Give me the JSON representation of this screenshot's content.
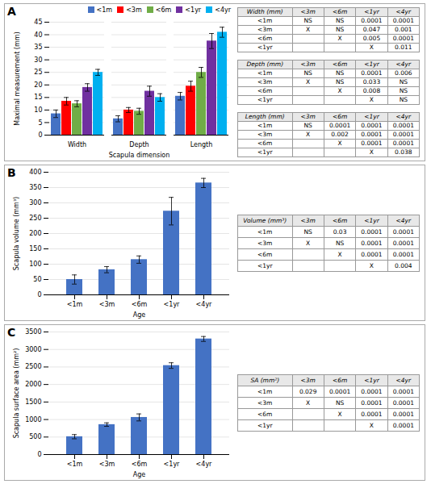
{
  "chart_data": [
    {
      "type": "bar",
      "title": "A",
      "categories": [
        "Width",
        "Depth",
        "Length"
      ],
      "series": [
        {
          "name": "<1m",
          "color": "#4472C4",
          "values": [
            8.5,
            6.5,
            15.5
          ],
          "errors": [
            1.5,
            1.2,
            1.5
          ]
        },
        {
          "name": "<3m",
          "color": "#FF0000",
          "values": [
            13.5,
            10.0,
            19.5
          ],
          "errors": [
            1.5,
            1.0,
            2.0
          ]
        },
        {
          "name": "<6m",
          "color": "#70AD47",
          "values": [
            12.5,
            9.5,
            25.0
          ],
          "errors": [
            1.2,
            1.2,
            2.0
          ]
        },
        {
          "name": "<1yr",
          "color": "#7030A0",
          "values": [
            19.0,
            17.5,
            37.5
          ],
          "errors": [
            1.5,
            2.0,
            3.0
          ]
        },
        {
          "name": "<4yr",
          "color": "#00B0F0",
          "values": [
            25.0,
            15.0,
            41.0
          ],
          "errors": [
            1.2,
            1.5,
            2.0
          ]
        }
      ],
      "xlabel": "Scapula dimension",
      "ylabel": "Maximal measurement (mm)",
      "ylim": [
        0,
        45
      ],
      "yticks": [
        0,
        5,
        10,
        15,
        20,
        25,
        30,
        35,
        40,
        45
      ],
      "grid": true,
      "legend": "upper right",
      "tables": [
        {
          "title": "Width (mm)",
          "columns": [
            "<3m",
            "<6m",
            "<1yr",
            "<4yr"
          ],
          "rows": [
            {
              "label": "<1m",
              "cells": [
                "NS",
                "NS",
                "0.0001",
                "0.0001"
              ]
            },
            {
              "label": "<3m",
              "cells": [
                "X",
                "NS",
                "0.047",
                "0.001"
              ]
            },
            {
              "label": "<6m",
              "cells": [
                null,
                "X",
                "0.005",
                "0.0001"
              ]
            },
            {
              "label": "<1yr",
              "cells": [
                null,
                null,
                "X",
                "0.011"
              ]
            }
          ]
        },
        {
          "title": "Depth (mm)",
          "columns": [
            "<3m",
            "<6m",
            "<1yr",
            "<4yr"
          ],
          "rows": [
            {
              "label": "<1m",
              "cells": [
                "NS",
                "NS",
                "0.0001",
                "0.006"
              ]
            },
            {
              "label": "<3m",
              "cells": [
                "X",
                "NS",
                "0.033",
                "NS"
              ]
            },
            {
              "label": "<6m",
              "cells": [
                null,
                "X",
                "0.008",
                "NS"
              ]
            },
            {
              "label": "<1yr",
              "cells": [
                null,
                null,
                "X",
                "NS"
              ]
            }
          ]
        },
        {
          "title": "Length (mm)",
          "columns": [
            "<3m",
            "<6m",
            "<1yr",
            "<4yr"
          ],
          "rows": [
            {
              "label": "<1m",
              "cells": [
                "NS",
                "0.0001",
                "0.0001",
                "0.0001"
              ]
            },
            {
              "label": "<3m",
              "cells": [
                "X",
                "0.002",
                "0.0001",
                "0.0001"
              ]
            },
            {
              "label": "<6m",
              "cells": [
                null,
                "X",
                "0.0001",
                "0.0001"
              ]
            },
            {
              "label": "<1yr",
              "cells": [
                null,
                null,
                "X",
                "0.038"
              ]
            }
          ]
        }
      ]
    },
    {
      "type": "bar",
      "title": "B",
      "categories": [
        "<1m",
        "<3m",
        "<6m",
        "<1yr",
        "<4yr"
      ],
      "values": [
        50,
        82,
        115,
        273,
        365
      ],
      "errors": [
        15,
        10,
        12,
        45,
        15
      ],
      "color": "#4472C4",
      "xlabel": "Age",
      "ylabel": "Scapula volume (mm³)",
      "ylim": [
        0,
        400
      ],
      "yticks": [
        0,
        50,
        100,
        150,
        200,
        250,
        300,
        350,
        400
      ],
      "grid": true,
      "tables": [
        {
          "title": "Volume (mm³)",
          "columns": [
            "<3m",
            "<6m",
            "<1yr",
            "<4yr"
          ],
          "rows": [
            {
              "label": "<1m",
              "cells": [
                "NS",
                "0.03",
                "0.0001",
                "0.0001"
              ]
            },
            {
              "label": "<3m",
              "cells": [
                "X",
                "NS",
                "0.0001",
                "0.0001"
              ]
            },
            {
              "label": "<6m",
              "cells": [
                null,
                "X",
                "0.0001",
                "0.0001"
              ]
            },
            {
              "label": "<1yr",
              "cells": [
                null,
                null,
                "X",
                "0.004"
              ]
            }
          ]
        }
      ]
    },
    {
      "type": "bar",
      "title": "C",
      "categories": [
        "<1m",
        "<3m",
        "<6m",
        "<1yr",
        "<4yr"
      ],
      "values": [
        510,
        855,
        1060,
        2540,
        3300
      ],
      "errors": [
        60,
        50,
        100,
        80,
        70
      ],
      "color": "#4472C4",
      "xlabel": "Age",
      "ylabel": "Scapula surface area (mm²)",
      "ylim": [
        0,
        3500
      ],
      "yticks": [
        0,
        500,
        1000,
        1500,
        2000,
        2500,
        3000,
        3500
      ],
      "grid": true,
      "tables": [
        {
          "title": "SA (mm²)",
          "columns": [
            "<3m",
            "<6m",
            "<1yr",
            "<4yr"
          ],
          "rows": [
            {
              "label": "<1m",
              "cells": [
                "0.029",
                "0.0001",
                "0.0001",
                "0.0001"
              ]
            },
            {
              "label": "<3m",
              "cells": [
                "X",
                "NS",
                "0.0001",
                "0.0001"
              ]
            },
            {
              "label": "<6m",
              "cells": [
                null,
                "X",
                "0.0001",
                "0.0001"
              ]
            },
            {
              "label": "<1yr",
              "cells": [
                null,
                null,
                "X",
                "0.0001"
              ]
            }
          ]
        }
      ]
    }
  ]
}
